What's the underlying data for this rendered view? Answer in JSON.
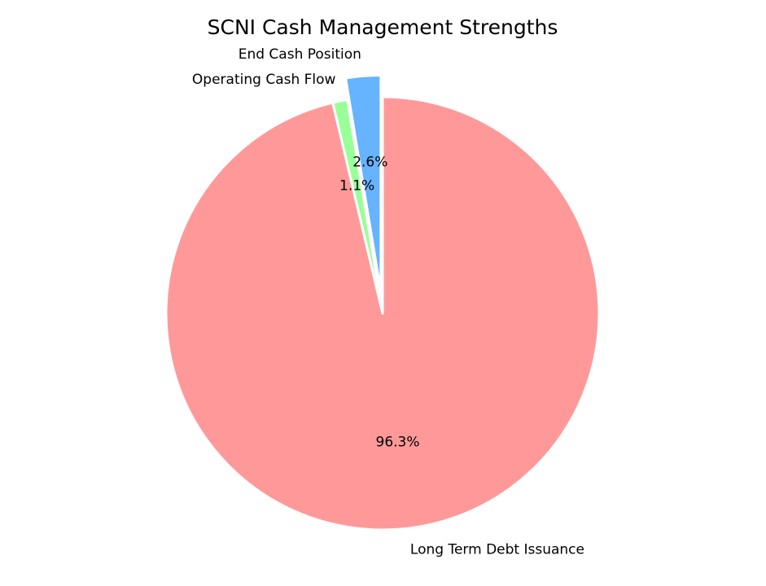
{
  "chart_data": {
    "type": "pie",
    "title": "SCNI Cash Management Strengths",
    "slices": [
      {
        "label": "End Cash Position",
        "value": 2.6,
        "pct_label": "2.6%",
        "color": "#66b3ff",
        "exploded": true
      },
      {
        "label": "Operating Cash Flow",
        "value": 1.1,
        "pct_label": "1.1%",
        "color": "#99ff99",
        "exploded": false
      },
      {
        "label": "Long Term Debt Issuance",
        "value": 96.3,
        "pct_label": "96.3%",
        "color": "#ff9999",
        "exploded": false
      }
    ],
    "start_angle": 90,
    "direction": "counterclockwise",
    "edge_color": "#ffffff"
  }
}
